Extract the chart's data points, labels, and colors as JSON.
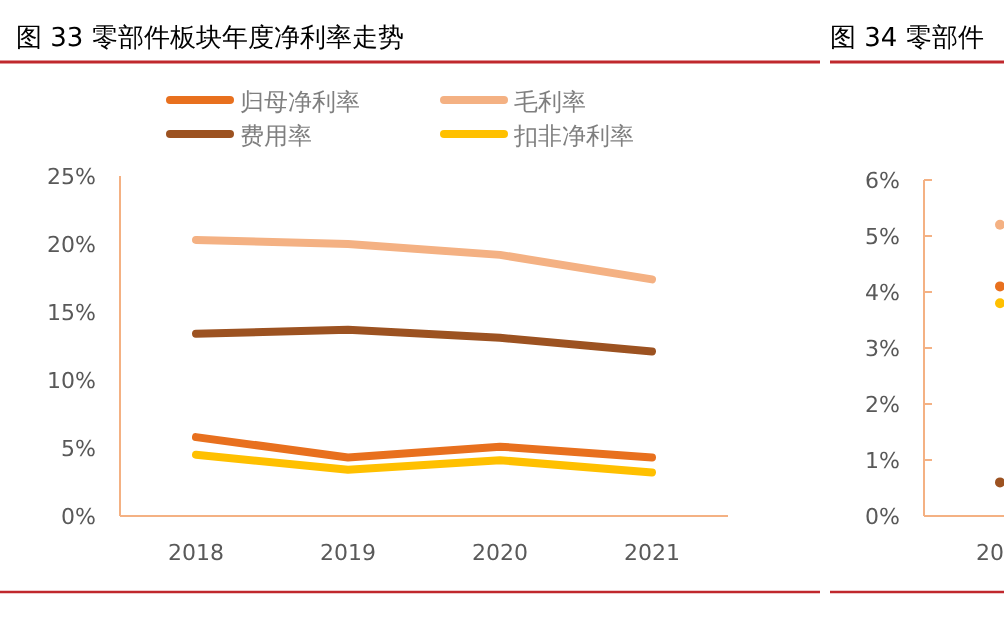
{
  "chart_data": [
    {
      "type": "line",
      "title": "图 33 零部件板块年度净利率走势",
      "categories": [
        "2018",
        "2019",
        "2020",
        "2021"
      ],
      "legend": "top",
      "series": [
        {
          "name": "归母净利率",
          "color": "#e8701e",
          "values": [
            5.8,
            4.3,
            5.1,
            4.3
          ]
        },
        {
          "name": "毛利率",
          "color": "#f4b183",
          "values": [
            20.3,
            20.0,
            19.2,
            17.4
          ]
        },
        {
          "name": "费用率",
          "color": "#9c5221",
          "values": [
            13.4,
            13.7,
            13.1,
            12.1
          ]
        },
        {
          "name": "扣非净利率",
          "color": "#ffc000",
          "values": [
            4.5,
            3.4,
            4.1,
            3.2
          ]
        }
      ],
      "ylim": [
        0,
        25
      ],
      "yticks": [
        {
          "value": 0,
          "label": "0%"
        },
        {
          "value": 5,
          "label": "5%"
        },
        {
          "value": 10,
          "label": "10%"
        },
        {
          "value": 15,
          "label": "15%"
        },
        {
          "value": 20,
          "label": "20%"
        },
        {
          "value": 25,
          "label": "25%"
        }
      ]
    },
    {
      "type": "line",
      "title": "图 34 零部件",
      "categories": [
        "20"
      ],
      "marker": "circle",
      "series": [
        {
          "color": "#f4b183",
          "values": [
            5.2
          ]
        },
        {
          "color": "#e8701e",
          "values": [
            4.1
          ]
        },
        {
          "color": "#ffc000",
          "values": [
            3.8
          ]
        },
        {
          "color": "#9c5221",
          "values": [
            0.6
          ]
        }
      ],
      "ylim": [
        0,
        6
      ],
      "yticks": [
        {
          "value": 0,
          "label": "0%"
        },
        {
          "value": 1,
          "label": "1%"
        },
        {
          "value": 2,
          "label": "2%"
        },
        {
          "value": 3,
          "label": "3%"
        },
        {
          "value": 4,
          "label": "4%"
        },
        {
          "value": 5,
          "label": "5%"
        },
        {
          "value": 6,
          "label": "6%"
        }
      ]
    }
  ]
}
